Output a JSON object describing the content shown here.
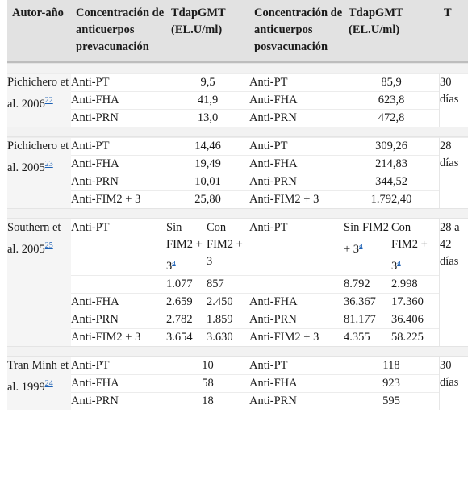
{
  "header": {
    "col1": "Autor-año",
    "col2": "Concentración de anticuerpos prevacunación",
    "col3": "TdapGMT (EL.U/ml)",
    "col4": "Concentración de anticuerpos posvacunación",
    "col5": "TdapGMT (EL.U/ml)",
    "col6": "T"
  },
  "studies": [
    {
      "author": "Pichichero et al. 2006",
      "ref": "22",
      "time": "30 días",
      "rows": [
        {
          "pre_ab": "Anti-PT",
          "pre_val": "9,5",
          "post_ab": "Anti-PT",
          "post_val": "85,9"
        },
        {
          "pre_ab": "Anti-FHA",
          "pre_val": "41,9",
          "post_ab": "Anti-FHA",
          "post_val": "623,8"
        },
        {
          "pre_ab": "Anti-PRN",
          "pre_val": "13,0",
          "post_ab": "Anti-PRN",
          "post_val": "472,8"
        }
      ]
    },
    {
      "author": "Pichichero et al. 2005",
      "ref": "23",
      "time": "28 días",
      "rows": [
        {
          "pre_ab": "Anti-PT",
          "pre_val": "14,46",
          "post_ab": "Anti-PT",
          "post_val": "309,26"
        },
        {
          "pre_ab": "Anti-FHA",
          "pre_val": "19,49",
          "post_ab": "Anti-FHA",
          "post_val": "214,83"
        },
        {
          "pre_ab": "Anti-PRN",
          "pre_val": "10,01",
          "post_ab": "Anti-PRN",
          "post_val": "344,52"
        },
        {
          "pre_ab": "Anti-FIM2 + 3",
          "pre_val": "25,80",
          "post_ab": "Anti-FIM2 + 3",
          "post_val": "1.792,40"
        }
      ]
    },
    {
      "author": "Southern et al. 2005",
      "ref": "25",
      "time": "28 a 42 días",
      "sub_header": {
        "pre_ab": "Anti-PT",
        "sin": "Sin FIM2 + 3",
        "con": "Con FIM2 + 3",
        "post_ab": "Anti-PT",
        "note": "a"
      },
      "rows": [
        {
          "pre_ab": "",
          "pre_sin": "1.077",
          "pre_con": "857",
          "post_ab": "",
          "post_sin": "8.792",
          "post_con": "2.998"
        },
        {
          "pre_ab": "Anti-FHA",
          "pre_sin": "2.659",
          "pre_con": "2.450",
          "post_ab": "Anti-FHA",
          "post_sin": "36.367",
          "post_con": "17.360"
        },
        {
          "pre_ab": "Anti-PRN",
          "pre_sin": "2.782",
          "pre_con": "1.859",
          "post_ab": "Anti-PRN",
          "post_sin": "81.177",
          "post_con": "36.406"
        },
        {
          "pre_ab": "Anti-FIM2 + 3",
          "pre_sin": "3.654",
          "pre_con": "3.630",
          "post_ab": "Anti-FIM2 + 3",
          "post_sin": "4.355",
          "post_con": "58.225"
        }
      ]
    },
    {
      "author": "Tran Minh et al. 1999",
      "ref": "24",
      "time": "30 días",
      "rows": [
        {
          "pre_ab": "Anti-PT",
          "pre_val": "10",
          "post_ab": "Anti-PT",
          "post_val": "118"
        },
        {
          "pre_ab": "Anti-FHA",
          "pre_val": "58",
          "post_ab": "Anti-FHA",
          "post_val": "923"
        },
        {
          "pre_ab": "Anti-PRN",
          "pre_val": "18",
          "post_ab": "Anti-PRN",
          "post_val": "595"
        }
      ]
    }
  ]
}
